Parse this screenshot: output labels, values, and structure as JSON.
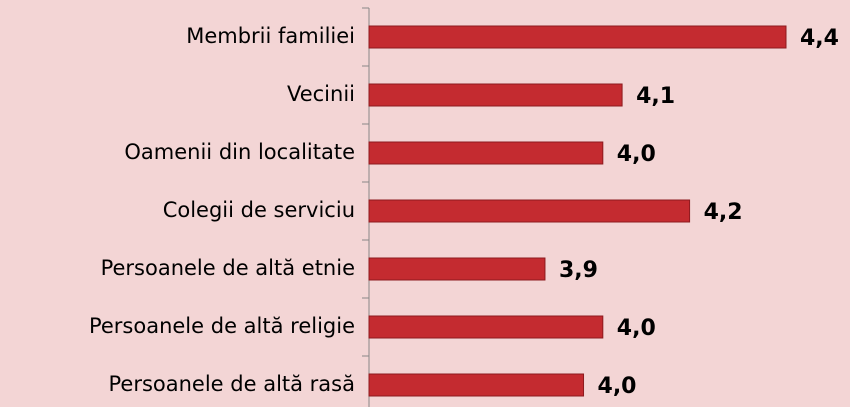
{
  "chart_data": {
    "type": "hbar",
    "categories": [
      "Membrii familiei",
      "Vecinii",
      "Oamenii din localitate",
      "Colegii de serviciu",
      "Persoanele de altă etnie",
      "Persoanele de altă religie",
      "Persoanele de altă rasă"
    ],
    "values": [
      4.4,
      4.06,
      4.02,
      4.2,
      3.9,
      4.02,
      3.98
    ],
    "value_labels": [
      "4,4",
      "4,1",
      "4,0",
      "4,2",
      "3,9",
      "4,0",
      "4,0"
    ],
    "color": "#c42b30",
    "xlim": [
      3.535,
      4.4
    ]
  }
}
